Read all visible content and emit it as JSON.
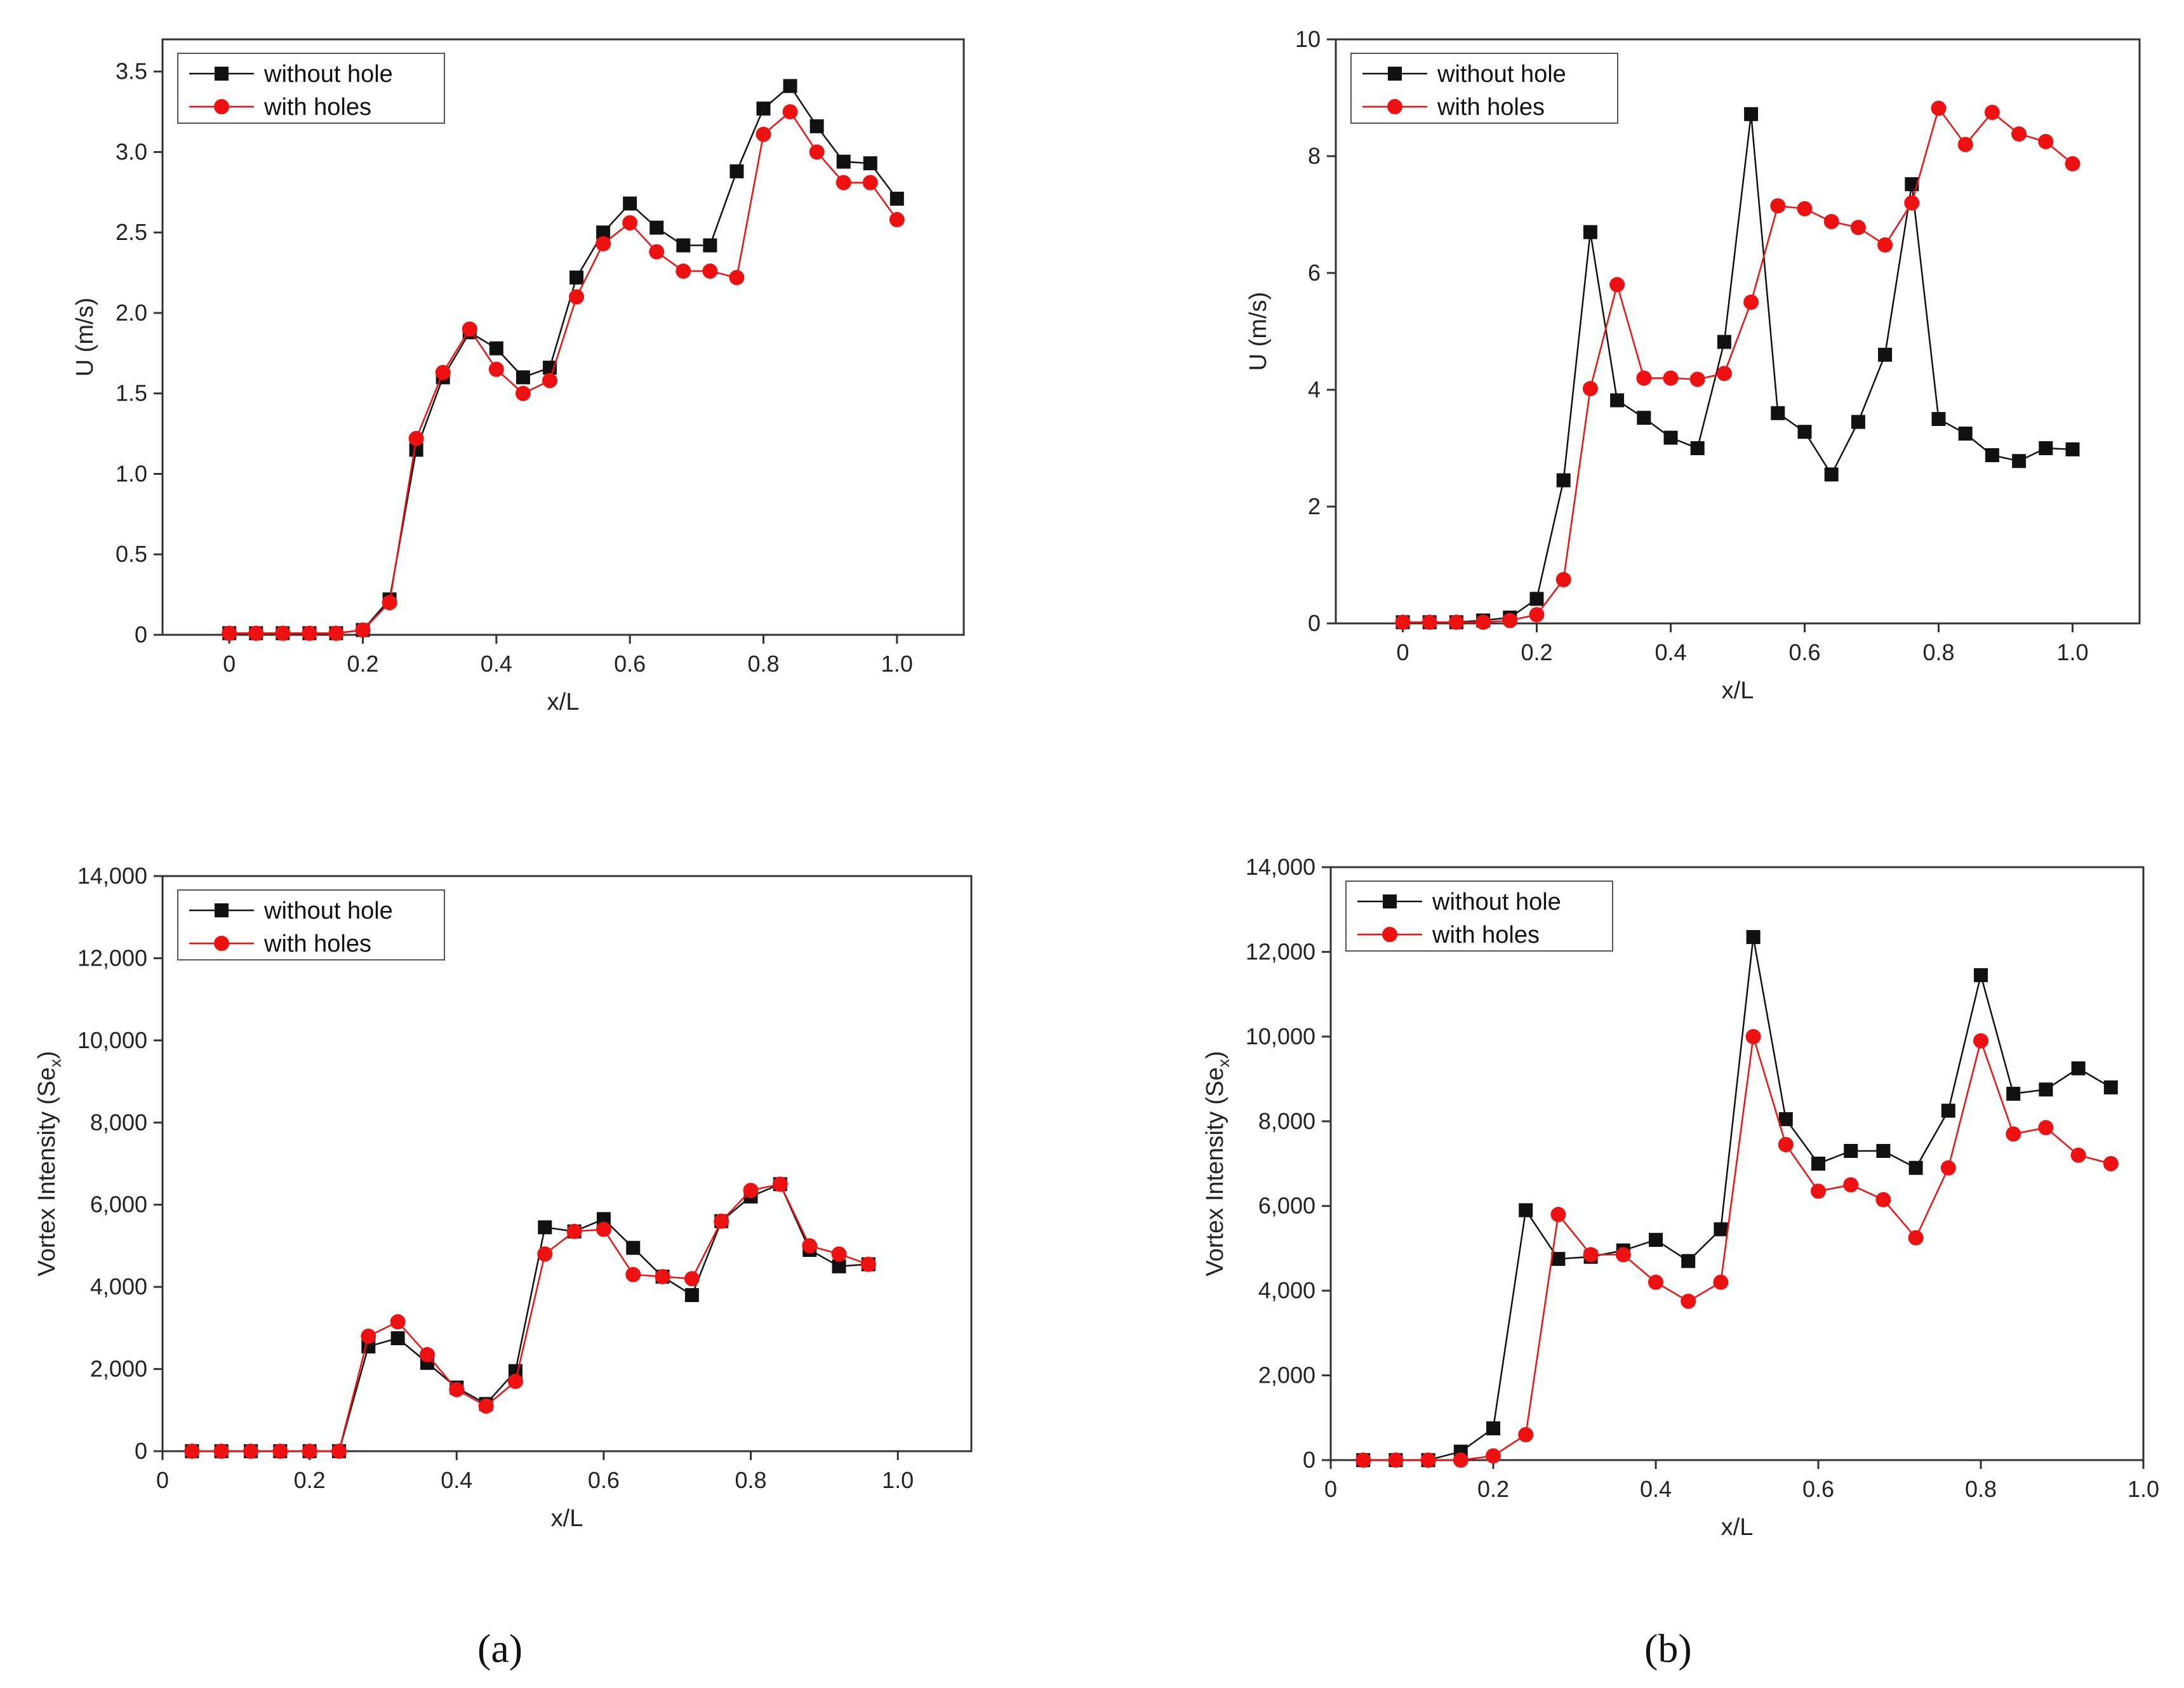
{
  "captions": {
    "a": "(a)",
    "b": "(b)"
  },
  "colors": {
    "series_without": "#111111",
    "series_with": "#ee1111",
    "frame": "#333333"
  },
  "chart_data": [
    {
      "id": "a-top",
      "type": "line",
      "xlabel": "x/L",
      "ylabel": "U (m/s)",
      "xlim": [
        -0.1,
        1.1
      ],
      "ylim": [
        0,
        3.7
      ],
      "xticks": [
        0,
        0.2,
        0.4,
        0.6,
        0.8,
        1.0
      ],
      "xtick_labels": [
        "0",
        "0.2",
        "0.4",
        "0.6",
        "0.8",
        "1.0"
      ],
      "yticks": [
        0,
        0.5,
        1.0,
        1.5,
        2.0,
        2.5,
        3.0,
        3.5
      ],
      "ytick_labels": [
        "0",
        "0.5",
        "1.0",
        "1.5",
        "2.0",
        "2.5",
        "3.0",
        "3.5"
      ],
      "legend": "top-left",
      "series": [
        {
          "name": "without hole",
          "marker": "square",
          "x": [
            0,
            0.04,
            0.08,
            0.12,
            0.16,
            0.2,
            0.24,
            0.28,
            0.32,
            0.36,
            0.4,
            0.44,
            0.48,
            0.52,
            0.56,
            0.6,
            0.64,
            0.68,
            0.72,
            0.76,
            0.8,
            0.84,
            0.88,
            0.92,
            0.96,
            1.0
          ],
          "y": [
            0.01,
            0.01,
            0.01,
            0.01,
            0.01,
            0.03,
            0.22,
            1.15,
            1.6,
            1.88,
            1.78,
            1.6,
            1.66,
            2.22,
            2.5,
            2.68,
            2.53,
            2.42,
            2.42,
            2.88,
            3.27,
            3.41,
            3.16,
            2.94,
            2.93,
            2.71
          ]
        },
        {
          "name": "with holes",
          "marker": "circle",
          "x": [
            0,
            0.04,
            0.08,
            0.12,
            0.16,
            0.2,
            0.24,
            0.28,
            0.32,
            0.36,
            0.4,
            0.44,
            0.48,
            0.52,
            0.56,
            0.6,
            0.64,
            0.68,
            0.72,
            0.76,
            0.8,
            0.84,
            0.88,
            0.92,
            0.96,
            1.0
          ],
          "y": [
            0.01,
            0.01,
            0.01,
            0.01,
            0.01,
            0.03,
            0.2,
            1.22,
            1.63,
            1.9,
            1.65,
            1.5,
            1.58,
            2.1,
            2.43,
            2.56,
            2.38,
            2.26,
            2.26,
            2.22,
            3.11,
            3.25,
            3.0,
            2.81,
            2.81,
            2.58
          ]
        }
      ]
    },
    {
      "id": "b-top",
      "type": "line",
      "xlabel": "x/L",
      "ylabel": "U (m/s)",
      "xlim": [
        -0.1,
        1.1
      ],
      "ylim": [
        0,
        10
      ],
      "xticks": [
        0,
        0.2,
        0.4,
        0.6,
        0.8,
        1.0
      ],
      "xtick_labels": [
        "0",
        "0.2",
        "0.4",
        "0.6",
        "0.8",
        "1.0"
      ],
      "yticks": [
        0,
        2,
        4,
        6,
        8,
        10
      ],
      "ytick_labels": [
        "0",
        "2",
        "4",
        "6",
        "8",
        "10"
      ],
      "legend": "top-left",
      "series": [
        {
          "name": "without hole",
          "marker": "square",
          "x": [
            0,
            0.04,
            0.08,
            0.12,
            0.16,
            0.2,
            0.24,
            0.28,
            0.32,
            0.36,
            0.4,
            0.44,
            0.48,
            0.52,
            0.56,
            0.6,
            0.64,
            0.68,
            0.72,
            0.76,
            0.8,
            0.84,
            0.88,
            0.92,
            0.96,
            1.0
          ],
          "y": [
            0.02,
            0.02,
            0.02,
            0.05,
            0.1,
            0.42,
            2.45,
            6.7,
            3.82,
            3.52,
            3.18,
            3.0,
            4.82,
            8.72,
            3.6,
            3.28,
            2.55,
            3.45,
            4.6,
            7.52,
            3.5,
            3.25,
            2.88,
            2.78,
            3.0,
            2.98
          ]
        },
        {
          "name": "with holes",
          "marker": "circle",
          "x": [
            0,
            0.04,
            0.08,
            0.12,
            0.16,
            0.2,
            0.24,
            0.28,
            0.32,
            0.36,
            0.4,
            0.44,
            0.48,
            0.52,
            0.56,
            0.6,
            0.64,
            0.68,
            0.72,
            0.76,
            0.8,
            0.84,
            0.88,
            0.92,
            0.96,
            1.0
          ],
          "y": [
            0.02,
            0.02,
            0.02,
            0.02,
            0.05,
            0.15,
            0.75,
            4.02,
            5.8,
            4.2,
            4.2,
            4.18,
            4.28,
            5.5,
            7.15,
            7.1,
            6.88,
            6.78,
            6.48,
            7.2,
            8.82,
            8.2,
            8.75,
            8.38,
            8.25,
            7.87
          ]
        }
      ]
    },
    {
      "id": "a-bottom",
      "type": "line",
      "xlabel": "x/L",
      "ylabel": "Vortex Intensity (Se",
      "ylabel_subscript": "x",
      "ylabel_suffix": ")",
      "xlim": [
        0,
        1.1
      ],
      "ylim": [
        0,
        14000
      ],
      "xticks": [
        0,
        0.2,
        0.4,
        0.6,
        0.8,
        1.0
      ],
      "xtick_labels": [
        "0",
        "0.2",
        "0.4",
        "0.6",
        "0.8",
        "1.0"
      ],
      "yticks": [
        0,
        2000,
        4000,
        6000,
        8000,
        10000,
        12000,
        14000
      ],
      "ytick_labels": [
        "0",
        "2,000",
        "4,000",
        "6,000",
        "8,000",
        "10,000",
        "12,000",
        "14,000"
      ],
      "legend": "top-left",
      "series": [
        {
          "name": "without hole",
          "marker": "square",
          "x": [
            0.04,
            0.08,
            0.12,
            0.16,
            0.2,
            0.24,
            0.28,
            0.32,
            0.36,
            0.4,
            0.44,
            0.48,
            0.52,
            0.56,
            0.6,
            0.64,
            0.68,
            0.72,
            0.76,
            0.8,
            0.84,
            0.88,
            0.92,
            0.96
          ],
          "y": [
            0,
            0,
            0,
            0,
            0,
            0,
            2550,
            2750,
            2150,
            1550,
            1150,
            1950,
            5450,
            5350,
            5650,
            4950,
            4250,
            3800,
            5600,
            6200,
            6500,
            4900,
            4500,
            4550
          ]
        },
        {
          "name": "with holes",
          "marker": "circle",
          "x": [
            0.04,
            0.08,
            0.12,
            0.16,
            0.2,
            0.24,
            0.28,
            0.32,
            0.36,
            0.4,
            0.44,
            0.48,
            0.52,
            0.56,
            0.6,
            0.64,
            0.68,
            0.72,
            0.76,
            0.8,
            0.84,
            0.88,
            0.92,
            0.96
          ],
          "y": [
            0,
            0,
            0,
            0,
            0,
            0,
            2800,
            3150,
            2350,
            1500,
            1100,
            1700,
            4800,
            5350,
            5400,
            4300,
            4250,
            4200,
            5600,
            6350,
            6500,
            5000,
            4800,
            4550
          ]
        }
      ]
    },
    {
      "id": "b-bottom",
      "type": "line",
      "xlabel": "x/L",
      "ylabel": "Vortex Intensity (Se",
      "ylabel_subscript": "x",
      "ylabel_suffix": ")",
      "xlim": [
        0,
        1.0
      ],
      "ylim": [
        0,
        14000
      ],
      "xticks": [
        0,
        0.2,
        0.4,
        0.6,
        0.8,
        1.0
      ],
      "xtick_labels": [
        "0",
        "0.2",
        "0.4",
        "0.6",
        "0.8",
        "1.0"
      ],
      "yticks": [
        0,
        2000,
        4000,
        6000,
        8000,
        10000,
        12000,
        14000
      ],
      "ytick_labels": [
        "0",
        "2,000",
        "4,000",
        "6,000",
        "8,000",
        "10,000",
        "12,000",
        "14,000"
      ],
      "legend": "top-left",
      "series": [
        {
          "name": "without hole",
          "marker": "square",
          "x": [
            0.04,
            0.08,
            0.12,
            0.16,
            0.2,
            0.24,
            0.28,
            0.32,
            0.36,
            0.4,
            0.44,
            0.48,
            0.52,
            0.56,
            0.6,
            0.64,
            0.68,
            0.72,
            0.76,
            0.8,
            0.84,
            0.88,
            0.92,
            0.96
          ],
          "y": [
            0,
            0,
            0,
            200,
            750,
            5900,
            4750,
            4800,
            4950,
            5200,
            4700,
            5450,
            12350,
            8050,
            7000,
            7300,
            7300,
            6900,
            8250,
            11450,
            8650,
            8750,
            9250,
            8800
          ]
        },
        {
          "name": "with holes",
          "marker": "circle",
          "x": [
            0.04,
            0.08,
            0.12,
            0.16,
            0.2,
            0.24,
            0.28,
            0.32,
            0.36,
            0.4,
            0.44,
            0.48,
            0.52,
            0.56,
            0.6,
            0.64,
            0.68,
            0.72,
            0.76,
            0.8,
            0.84,
            0.88,
            0.92,
            0.96
          ],
          "y": [
            0,
            0,
            0,
            0,
            100,
            600,
            5800,
            4850,
            4850,
            4200,
            3750,
            4200,
            10000,
            7450,
            6350,
            6500,
            6150,
            5250,
            6900,
            9900,
            7700,
            7850,
            7200,
            7000
          ]
        }
      ]
    }
  ]
}
